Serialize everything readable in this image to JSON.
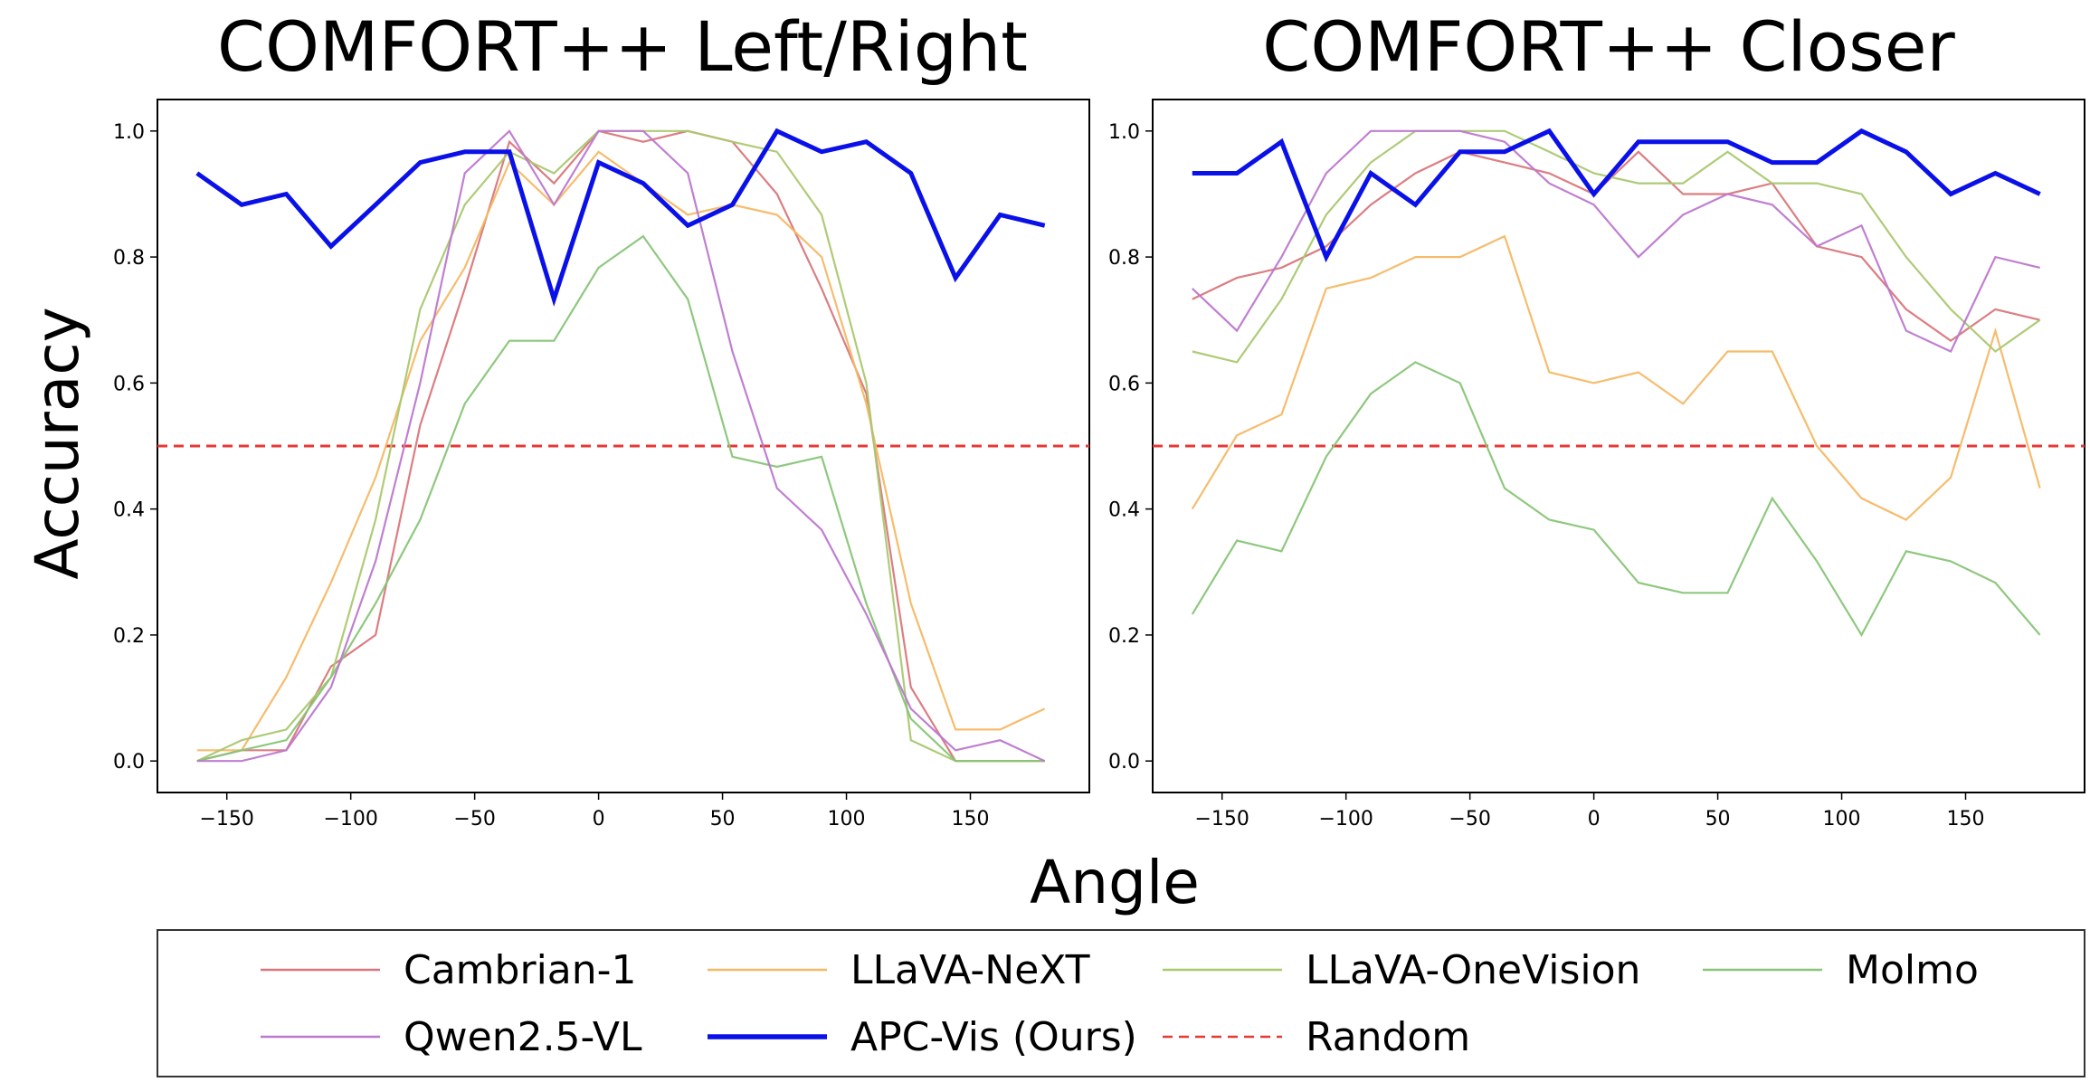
{
  "figure": {
    "xlabel": "Angle",
    "ylabel": "Accuracy"
  },
  "chart_data": [
    {
      "type": "line",
      "title": "COMFORT++ Left/Right",
      "xlabel": "Angle",
      "ylabel": "Accuracy",
      "xlim": [
        -178,
        198
      ],
      "ylim": [
        -0.05,
        1.05
      ],
      "xticks": [
        -150,
        -100,
        -50,
        0,
        50,
        100,
        150
      ],
      "xtick_labels": [
        "−150",
        "−100",
        "−50",
        "0",
        "50",
        "100",
        "150"
      ],
      "yticks": [
        0.0,
        0.2,
        0.4,
        0.6,
        0.8,
        1.0
      ],
      "ytick_labels": [
        "0.0",
        "0.2",
        "0.4",
        "0.6",
        "0.8",
        "1.0"
      ],
      "x": [
        -162,
        -144,
        -126,
        -108,
        -90,
        -72,
        -54,
        -36,
        -18,
        0,
        18,
        36,
        54,
        72,
        90,
        108,
        126,
        144,
        162,
        180
      ],
      "series": [
        {
          "name": "Cambrian-1",
          "values": [
            0.0,
            0.017,
            0.017,
            0.15,
            0.2,
            0.533,
            0.75,
            0.983,
            0.917,
            1.0,
            0.983,
            1.0,
            0.983,
            0.9,
            0.75,
            0.583,
            0.117,
            0.0,
            0.0,
            0.0
          ]
        },
        {
          "name": "LLaVA-NeXT",
          "values": [
            0.017,
            0.017,
            0.133,
            0.283,
            0.45,
            0.667,
            0.783,
            0.95,
            0.883,
            0.967,
            0.917,
            0.867,
            0.883,
            0.867,
            0.8,
            0.567,
            0.25,
            0.05,
            0.05,
            0.083
          ]
        },
        {
          "name": "LLaVA-OneVision",
          "values": [
            0.0,
            0.033,
            0.05,
            0.133,
            0.383,
            0.717,
            0.883,
            0.967,
            0.933,
            1.0,
            1.0,
            1.0,
            0.983,
            0.967,
            0.867,
            0.6,
            0.033,
            0.0,
            0.0,
            0.0
          ]
        },
        {
          "name": "Molmo",
          "values": [
            0.0,
            0.017,
            0.033,
            0.133,
            0.25,
            0.383,
            0.567,
            0.667,
            0.667,
            0.783,
            0.833,
            0.733,
            0.483,
            0.467,
            0.483,
            0.25,
            0.067,
            0.0,
            0.0,
            0.0
          ]
        },
        {
          "name": "Qwen2.5-VL",
          "values": [
            0.0,
            0.0,
            0.017,
            0.117,
            0.317,
            0.6,
            0.933,
            1.0,
            0.883,
            1.0,
            1.0,
            0.933,
            0.65,
            0.433,
            0.367,
            0.233,
            0.083,
            0.017,
            0.033,
            0.0
          ]
        },
        {
          "name": "APC-Vis (Ours)",
          "values": [
            0.933,
            0.883,
            0.9,
            0.817,
            0.883,
            0.95,
            0.967,
            0.967,
            0.733,
            0.95,
            0.917,
            0.85,
            0.883,
            1.0,
            0.967,
            0.983,
            0.933,
            0.767,
            0.867,
            0.85
          ]
        }
      ],
      "reference_line": {
        "name": "Random",
        "y": 0.5
      }
    },
    {
      "type": "line",
      "title": "COMFORT++ Closer",
      "xlabel": "Angle",
      "ylabel": "Accuracy",
      "xlim": [
        -178,
        198
      ],
      "ylim": [
        -0.05,
        1.05
      ],
      "xticks": [
        -150,
        -100,
        -50,
        0,
        50,
        100,
        150
      ],
      "xtick_labels": [
        "−150",
        "−100",
        "−50",
        "0",
        "50",
        "100",
        "150"
      ],
      "yticks": [
        0.0,
        0.2,
        0.4,
        0.6,
        0.8,
        1.0
      ],
      "ytick_labels": [
        "0.0",
        "0.2",
        "0.4",
        "0.6",
        "0.8",
        "1.0"
      ],
      "x": [
        -162,
        -144,
        -126,
        -108,
        -90,
        -72,
        -54,
        -36,
        -18,
        0,
        18,
        36,
        54,
        72,
        90,
        108,
        126,
        144,
        162,
        180
      ],
      "series": [
        {
          "name": "Cambrian-1",
          "values": [
            0.733,
            0.767,
            0.783,
            0.817,
            0.883,
            0.933,
            0.967,
            0.95,
            0.933,
            0.9,
            0.967,
            0.9,
            0.9,
            0.917,
            0.817,
            0.8,
            0.717,
            0.667,
            0.717,
            0.7
          ]
        },
        {
          "name": "LLaVA-NeXT",
          "values": [
            0.4,
            0.517,
            0.55,
            0.75,
            0.767,
            0.8,
            0.8,
            0.833,
            0.617,
            0.6,
            0.617,
            0.567,
            0.65,
            0.65,
            0.5,
            0.417,
            0.383,
            0.45,
            0.683,
            0.433
          ]
        },
        {
          "name": "LLaVA-OneVision",
          "values": [
            0.65,
            0.633,
            0.733,
            0.867,
            0.95,
            1.0,
            1.0,
            1.0,
            0.967,
            0.933,
            0.917,
            0.917,
            0.967,
            0.917,
            0.917,
            0.9,
            0.8,
            0.717,
            0.65,
            0.7
          ]
        },
        {
          "name": "Molmo",
          "values": [
            0.233,
            0.35,
            0.333,
            0.483,
            0.583,
            0.633,
            0.6,
            0.433,
            0.383,
            0.367,
            0.283,
            0.267,
            0.267,
            0.417,
            0.317,
            0.2,
            0.333,
            0.317,
            0.283,
            0.2
          ]
        },
        {
          "name": "Qwen2.5-VL",
          "values": [
            0.75,
            0.683,
            0.8,
            0.933,
            1.0,
            1.0,
            1.0,
            0.983,
            0.917,
            0.883,
            0.8,
            0.867,
            0.9,
            0.883,
            0.817,
            0.85,
            0.683,
            0.65,
            0.8,
            0.783
          ]
        },
        {
          "name": "APC-Vis (Ours)",
          "values": [
            0.933,
            0.933,
            0.983,
            0.8,
            0.933,
            0.883,
            0.967,
            0.967,
            1.0,
            0.9,
            0.983,
            0.983,
            0.983,
            0.95,
            0.95,
            1.0,
            0.967,
            0.9,
            0.933,
            0.9
          ]
        }
      ],
      "reference_line": {
        "name": "Random",
        "y": 0.5
      }
    }
  ],
  "legend": {
    "placement": "bottom",
    "entries": [
      {
        "name": "Cambrian-1",
        "color": "#d9777b",
        "style": "solid"
      },
      {
        "name": "LLaVA-NeXT",
        "color": "#f5b865",
        "style": "solid"
      },
      {
        "name": "LLaVA-OneVision",
        "color": "#aac870",
        "style": "solid"
      },
      {
        "name": "Molmo",
        "color": "#88c577",
        "style": "solid"
      },
      {
        "name": "Qwen2.5-VL",
        "color": "#bd78cf",
        "style": "solid"
      },
      {
        "name": "APC-Vis (Ours)",
        "color": "#0a10e8",
        "style": "bold"
      },
      {
        "name": "Random",
        "color": "#e53935",
        "style": "dashed"
      }
    ]
  },
  "colors": {
    "Cambrian-1": "#d9777b",
    "LLaVA-NeXT": "#f5b865",
    "LLaVA-OneVision": "#aac870",
    "Molmo": "#88c577",
    "Qwen2.5-VL": "#bd78cf",
    "APC-Vis (Ours)": "#0a10e8",
    "Random": "#e53935"
  }
}
